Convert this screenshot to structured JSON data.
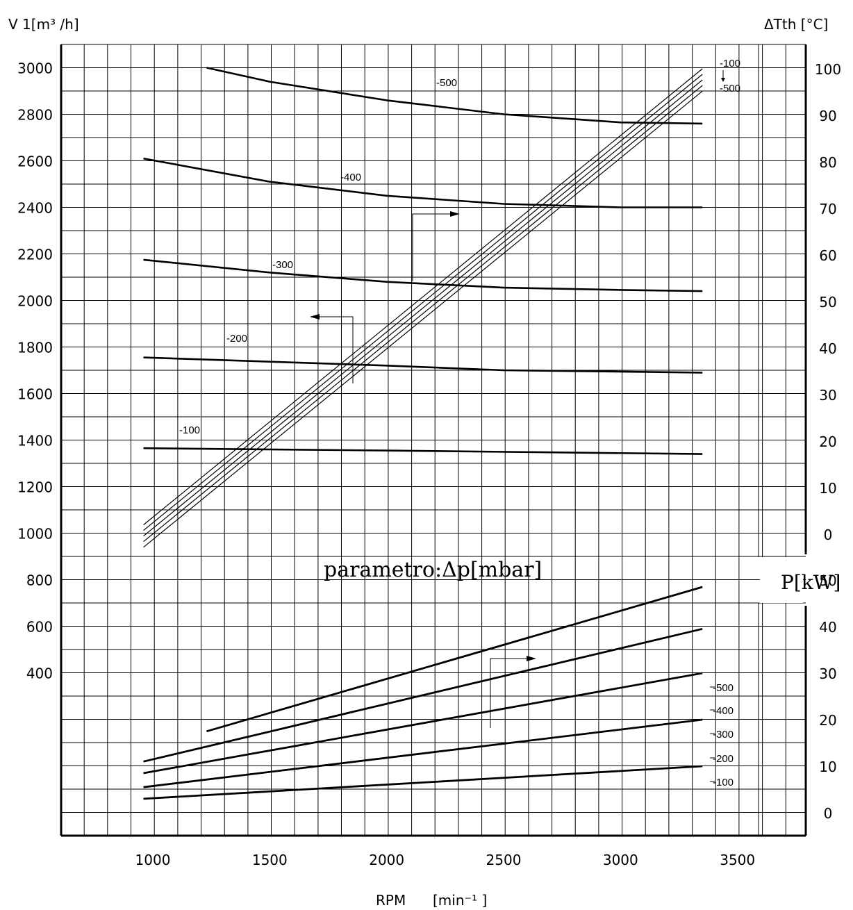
{
  "chart_data": {
    "type": "line",
    "x_axis": {
      "label": "RPM",
      "unit": "[min⁻¹ ]",
      "range": [
        600,
        3800
      ],
      "ticks": [
        "1000",
        "1500",
        "2000",
        "2500",
        "3000",
        "3500"
      ]
    },
    "left_axis": {
      "label": "V 1[m³ /h]",
      "range": [
        200,
        3100
      ],
      "ticks": [
        "400",
        "600",
        "800",
        "1000",
        "1200",
        "1400",
        "1600",
        "1800",
        "2000",
        "2200",
        "2400",
        "2600",
        "2800",
        "3000"
      ]
    },
    "right_axis_temperature": {
      "label": "ΔTth [°C]",
      "range": [
        0,
        100
      ],
      "ticks": [
        "0",
        "10",
        "20",
        "30",
        "40",
        "50",
        "60",
        "70",
        "80",
        "90",
        "100"
      ]
    },
    "right_axis_power": {
      "label": "P[kW]",
      "range": [
        0,
        50
      ],
      "ticks": [
        "0",
        "10",
        "20",
        "30",
        "40",
        "50"
      ]
    },
    "parameter_label": "parametro:Δp[mbar]",
    "grid": true,
    "flow_series": [
      {
        "name": "-100",
        "x": [
          960,
          2000,
          3350
        ],
        "values": [
          1365,
          1355,
          1340
        ]
      },
      {
        "name": "-200",
        "x": [
          960,
          2000,
          2500,
          3350
        ],
        "values": [
          1755,
          1720,
          1700,
          1690
        ]
      },
      {
        "name": "-300",
        "x": [
          960,
          1500,
          2000,
          2500,
          3000,
          3350
        ],
        "values": [
          2175,
          2120,
          2080,
          2055,
          2045,
          2040
        ]
      },
      {
        "name": "-400",
        "x": [
          960,
          1500,
          2000,
          2500,
          3000,
          3350
        ],
        "values": [
          2610,
          2510,
          2450,
          2415,
          2400,
          2400
        ]
      },
      {
        "name": "-500",
        "x": [
          1230,
          1500,
          2000,
          2500,
          3000,
          3350
        ],
        "values": [
          3000,
          2940,
          2860,
          2800,
          2765,
          2760
        ]
      }
    ],
    "temperature_series": [
      {
        "name": "-100",
        "x": [
          960,
          3350
        ],
        "values": [
          2,
          100
        ]
      },
      {
        "name": "-200",
        "x": [
          960,
          3350
        ],
        "values": [
          0.8,
          98.8
        ]
      },
      {
        "name": "-300",
        "x": [
          960,
          3350
        ],
        "values": [
          -0.4,
          97.6
        ]
      },
      {
        "name": "-400",
        "x": [
          960,
          3350
        ],
        "values": [
          -1.6,
          96.4
        ]
      },
      {
        "name": "-500",
        "x": [
          960,
          3350
        ],
        "values": [
          -2.8,
          95.2
        ]
      }
    ],
    "power_series": [
      {
        "name": "-100",
        "x": [
          960,
          3350
        ],
        "values": [
          3,
          10
        ]
      },
      {
        "name": "-200",
        "x": [
          960,
          3350
        ],
        "values": [
          5.5,
          20
        ]
      },
      {
        "name": "-300",
        "x": [
          960,
          3350
        ],
        "values": [
          8.5,
          30
        ]
      },
      {
        "name": "-400",
        "x": [
          960,
          3350
        ],
        "values": [
          11,
          39.5
        ]
      },
      {
        "name": "-500",
        "x": [
          1230,
          3350
        ],
        "values": [
          17.5,
          48.5
        ]
      }
    ],
    "temperature_tag_range": [
      "-100",
      "-500"
    ]
  }
}
